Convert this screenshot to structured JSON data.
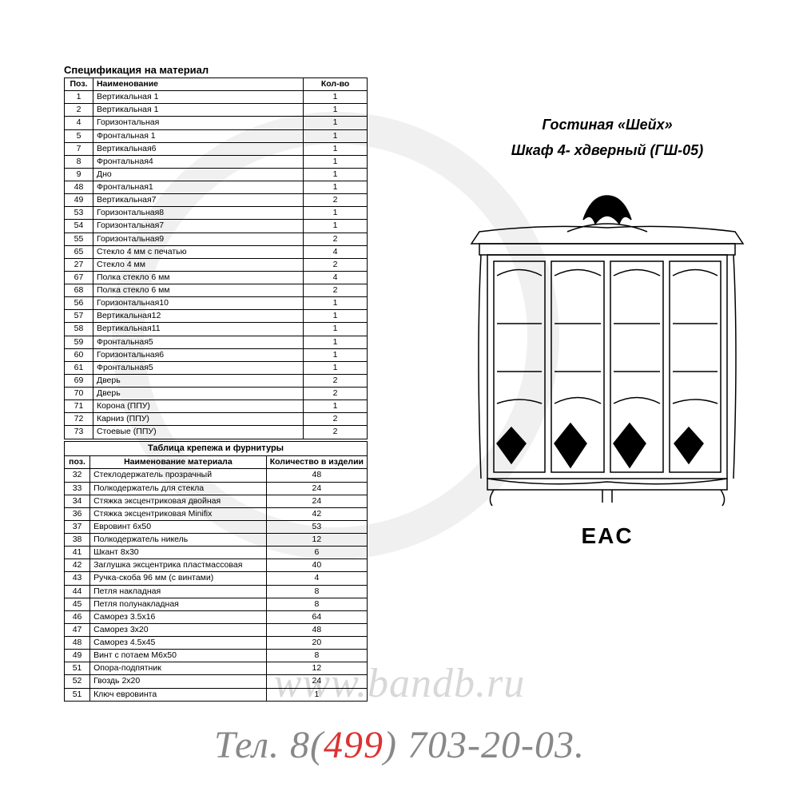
{
  "watermark_url": "www.bandb.ru",
  "phone": {
    "prefix": "Тел. 8(",
    "accent": "499",
    "suffix": ") 703-20-03."
  },
  "product": {
    "line1": "Гостиная «Шейх»",
    "line2": "Шкаф 4- хдверный  (ГШ-05)"
  },
  "eac_label": "EAC",
  "spec": {
    "title": "Спецификация на материал",
    "columns": [
      "Поз.",
      "Наименование",
      "Кол-во"
    ],
    "rows": [
      [
        "1",
        "Вертикальная 1",
        "1"
      ],
      [
        "2",
        "Вертикальная 1",
        "1"
      ],
      [
        "4",
        "Горизонтальная",
        "1"
      ],
      [
        "5",
        "Фронтальная 1",
        "1"
      ],
      [
        "7",
        "Вертикальная6",
        "1"
      ],
      [
        "8",
        "Фронтальная4",
        "1"
      ],
      [
        "9",
        "Дно",
        "1"
      ],
      [
        "48",
        "Фронтальная1",
        "1"
      ],
      [
        "49",
        "Вертикальная7",
        "2"
      ],
      [
        "53",
        "Горизонтальная8",
        "1"
      ],
      [
        "54",
        "Горизонтальная7",
        "1"
      ],
      [
        "55",
        "Горизонтальная9",
        "2"
      ],
      [
        "65",
        "Стекло 4 мм с печатью",
        "4"
      ],
      [
        "27",
        "Стекло 4 мм",
        "2"
      ],
      [
        "67",
        "Полка стекло 6 мм",
        "4"
      ],
      [
        "68",
        "Полка стекло 6 мм",
        "2"
      ],
      [
        "56",
        "Горизонтальная10",
        "1"
      ],
      [
        "57",
        "Вертикальная12",
        "1"
      ],
      [
        "58",
        "Вертикальная11",
        "1"
      ],
      [
        "59",
        "Фронтальная5",
        "1"
      ],
      [
        "60",
        "Горизонтальная6",
        "1"
      ],
      [
        "61",
        "Фронтальная5",
        "1"
      ],
      [
        "69",
        "Дверь",
        "2"
      ],
      [
        "70",
        "Дверь",
        "2"
      ],
      [
        "71",
        "Корона (ППУ)",
        "1"
      ],
      [
        "72",
        "Карниз (ППУ)",
        "2"
      ],
      [
        "73",
        "Стоевые (ППУ)",
        "2"
      ]
    ]
  },
  "hardware": {
    "caption": "Таблица крепежа и фурнитуры",
    "columns": [
      "поз.",
      "Наименование материала",
      "Количество в изделии"
    ],
    "rows": [
      [
        "32",
        "Стеклодержатель прозрачный",
        "48"
      ],
      [
        "33",
        "Полкодержатель  для стекла",
        "24"
      ],
      [
        "34",
        "Стяжка  эксцентриковая двойная",
        "24"
      ],
      [
        "36",
        "Стяжка эксцентриковая Minifix",
        "42"
      ],
      [
        "37",
        "Евровинт 6х50",
        "53"
      ],
      [
        "38",
        "Полкодержатель никель",
        "12"
      ],
      [
        "41",
        "Шкант 8х30",
        "6"
      ],
      [
        "42",
        "Заглушка эксцентрика пластмассовая",
        "40"
      ],
      [
        "43",
        "Ручка-скоба 96 мм (с винтами)",
        "4"
      ],
      [
        "44",
        "Петля накладная",
        "8"
      ],
      [
        "45",
        "Петля полунакладная",
        "8"
      ],
      [
        "46",
        "Саморез 3.5х16",
        "64"
      ],
      [
        "47",
        "Саморез 3х20",
        "48"
      ],
      [
        "48",
        "Саморез 4.5х45",
        "20"
      ],
      [
        "49",
        "Винт с потаем М6х50",
        "8"
      ],
      [
        "51",
        "Опора-подпятник",
        "12"
      ],
      [
        "52",
        "Гвоздь 2х20",
        "24"
      ],
      [
        "51",
        "Ключ евровинта",
        "1"
      ]
    ]
  },
  "colors": {
    "border": "#000000",
    "text": "#000000",
    "watermark": "#d8d8d8",
    "phone_gray": "#888888",
    "phone_accent": "#dc3333",
    "bg": "#ffffff",
    "circle": "#f0f0f0"
  }
}
